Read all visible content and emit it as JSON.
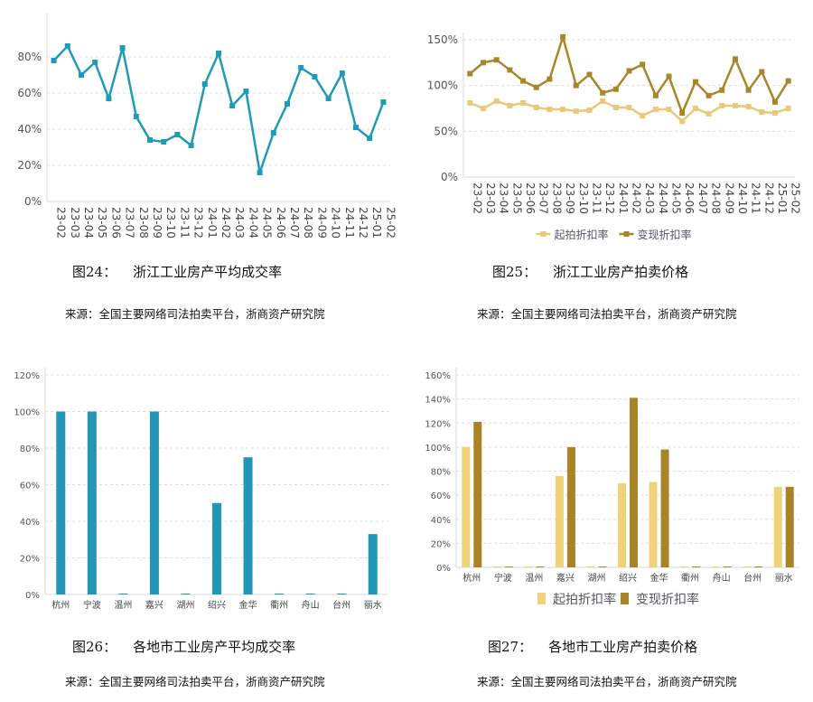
{
  "figures": [
    {
      "number": "图24：",
      "title": "浙江工业房产平均成交率",
      "source": "来源：全国主要网络司法拍卖平台，浙商资产研究院"
    },
    {
      "number": "图25：",
      "title": "浙江工业房产拍卖价格",
      "source": "来源：全国主要网络司法拍卖平台，浙商资产研究院"
    },
    {
      "number": "图26：",
      "title": "各地市工业房产平均成交率",
      "source": "来源：全国主要网络司法拍卖平台，浙商资产研究院"
    },
    {
      "number": "图27：",
      "title": "各地市工业房产拍卖价格",
      "source": "来源：全国主要网络司法拍卖平台，浙商资产研究院"
    }
  ],
  "chart_data": [
    {
      "type": "line",
      "categories": [
        "23-02",
        "23-03",
        "23-04",
        "23-05",
        "23-06",
        "23-07",
        "23-08",
        "23-09",
        "23-10",
        "23-11",
        "23-12",
        "24-01",
        "24-02",
        "24-03",
        "24-04",
        "24-05",
        "24-06",
        "24-07",
        "24-08",
        "24-09",
        "24-10",
        "24-11",
        "24-12",
        "25-01",
        "25-02"
      ],
      "series": [
        {
          "values": [
            78,
            86,
            70,
            77,
            57,
            85,
            47,
            34,
            33,
            37,
            31,
            65,
            82,
            53,
            61,
            16,
            38,
            54,
            74,
            69,
            57,
            71,
            41,
            35,
            55
          ],
          "color": "#1f9bb8"
        }
      ],
      "yticks": [
        "0%",
        "20%",
        "40%",
        "60%",
        "80%"
      ],
      "ylim": [
        0,
        100
      ],
      "unit": "%",
      "grid": true,
      "legend": "none"
    },
    {
      "type": "line",
      "categories": [
        "23-02",
        "23-03",
        "23-04",
        "23-05",
        "23-06",
        "23-07",
        "23-08",
        "23-09",
        "23-10",
        "23-11",
        "23-12",
        "24-01",
        "24-02",
        "24-03",
        "24-04",
        "24-05",
        "24-06",
        "24-07",
        "24-08",
        "24-09",
        "24-10",
        "24-11",
        "24-12",
        "25-01",
        "25-02"
      ],
      "series": [
        {
          "name": "起拍折扣率",
          "values": [
            81,
            75,
            83,
            78,
            81,
            76,
            74,
            74,
            72,
            73,
            83,
            76,
            76,
            67,
            74,
            74,
            61,
            75,
            69,
            78,
            78,
            77,
            71,
            70,
            75
          ],
          "color": "#e9c97a"
        },
        {
          "name": "变现折扣率",
          "values": [
            113,
            125,
            128,
            117,
            105,
            98,
            107,
            153,
            100,
            112,
            92,
            96,
            116,
            123,
            89,
            110,
            70,
            104,
            89,
            95,
            129,
            95,
            115,
            82,
            105
          ],
          "color": "#a8872a"
        }
      ],
      "yticks": [
        "0%",
        "50%",
        "100%",
        "150%"
      ],
      "ylim": [
        0,
        150
      ],
      "unit": "%",
      "grid": true,
      "legend": "bottom"
    },
    {
      "type": "bar",
      "categories": [
        "杭州",
        "宁波",
        "温州",
        "嘉兴",
        "湖州",
        "绍兴",
        "金华",
        "衢州",
        "舟山",
        "台州",
        "丽水"
      ],
      "series": [
        {
          "values": [
            100,
            100,
            0,
            100,
            0,
            50,
            75,
            0,
            0,
            0,
            33
          ],
          "color": "#2196b8"
        }
      ],
      "yticks": [
        "0%",
        "20%",
        "40%",
        "60%",
        "80%",
        "100%",
        "120%"
      ],
      "ylim": [
        0,
        120
      ],
      "unit": "%",
      "grid": true,
      "legend": "none"
    },
    {
      "type": "bar",
      "categories": [
        "杭州",
        "宁波",
        "温州",
        "嘉兴",
        "湖州",
        "绍兴",
        "金华",
        "衢州",
        "舟山",
        "台州",
        "丽水"
      ],
      "series": [
        {
          "name": "起拍折扣率",
          "values": [
            100,
            0,
            0,
            76,
            0,
            70,
            71,
            0,
            0,
            0,
            67
          ],
          "color": "#f0d27a"
        },
        {
          "name": "变现折扣率",
          "values": [
            121,
            0,
            0,
            100,
            0,
            141,
            98,
            0,
            0,
            0,
            67
          ],
          "color": "#a98426"
        }
      ],
      "yticks": [
        "0%",
        "20%",
        "40%",
        "60%",
        "80%",
        "100%",
        "120%",
        "140%",
        "160%"
      ],
      "ylim": [
        0,
        160
      ],
      "unit": "%",
      "grid": true,
      "legend": "bottom"
    }
  ]
}
